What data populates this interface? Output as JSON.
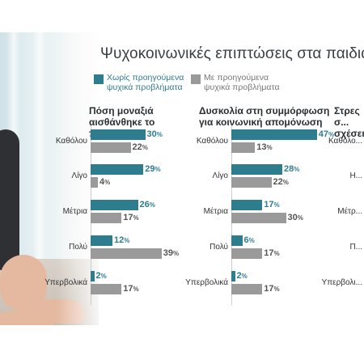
{
  "title": "Ψυχοκοινωνικές επιπτώσεις στα παιδιά",
  "legend": {
    "teal": "Χωρίς προηγούμενα ψυχικά προβλήματα",
    "grey": "Με προηγούμενα ψυχικά προβλήματα"
  },
  "colors": {
    "teal": "#2e7d8e",
    "grey": "#9a9a9a"
  },
  "chart_data": [
    {
      "type": "bar",
      "title": "Πόση μοναξιά αισθάνθηκε το παιδί σας;",
      "categories": [
        "Καθόλου",
        "Λίγο",
        "Μέτρια",
        "Πολύ",
        "Υπερβολικά"
      ],
      "series": [
        {
          "name": "Χωρίς προηγούμενα ψυχικά προβλήματα",
          "values": [
            30,
            29,
            26,
            12,
            2
          ]
        },
        {
          "name": "Με προηγούμενα ψυχικά προβλήματα",
          "values": [
            22,
            4,
            17,
            39,
            17
          ]
        }
      ],
      "unit": "%"
    },
    {
      "type": "bar",
      "title": "Δυσκολία στη συμμόρφωση για κοινωνική απομόνωση",
      "categories": [
        "Καθόλου",
        "Λίγο",
        "Μέτρια",
        "Πολύ",
        "Υπερβολικά"
      ],
      "series": [
        {
          "name": "Χωρίς προηγούμενα ψυχικά προβλήματα",
          "values": [
            47,
            28,
            17,
            6,
            2
          ]
        },
        {
          "name": "Με προηγούμενα ψυχικά προβλήματα",
          "values": [
            13,
            22,
            30,
            17,
            17
          ]
        }
      ],
      "unit": "%"
    },
    {
      "type": "bar",
      "title": "Στρες σ... σχέσεις...",
      "categories": [
        "Καθόλο...",
        "Η...",
        "Μέτρ...",
        "Π...",
        "Υπερβολι..."
      ],
      "series": [],
      "unit": "%"
    }
  ]
}
